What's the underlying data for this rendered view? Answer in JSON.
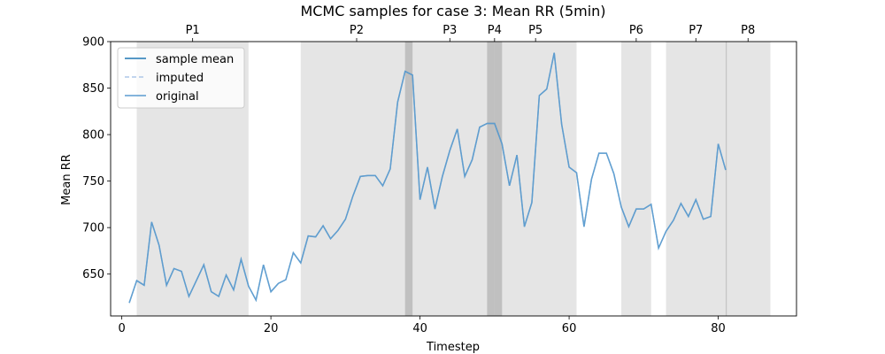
{
  "chart_data": {
    "type": "line",
    "title": "MCMC samples for case 3: Mean RR (5min)",
    "xlabel": "Timestep",
    "ylabel": "Mean RR",
    "xlim": [
      -1.5,
      90.5
    ],
    "ylim": [
      605,
      900
    ],
    "xticks": [
      0,
      20,
      40,
      60,
      80
    ],
    "yticks": [
      650,
      700,
      750,
      800,
      850,
      900
    ],
    "legend_position": "upper-left",
    "colors": {
      "sample_mean": "#1f77b4",
      "imputed": "#aec7e8",
      "original": "#5b9bd0",
      "period_shade": "#d3d3d3",
      "overlap_shade": "#a9a9a9"
    },
    "legend": [
      {
        "label": "sample mean",
        "style": "solid"
      },
      {
        "label": "imputed",
        "style": "dashed"
      },
      {
        "label": "original",
        "style": "solid"
      }
    ],
    "periods": [
      {
        "label": "P1",
        "start": 2,
        "end": 17
      },
      {
        "label": "P2",
        "start": 24,
        "end": 39
      },
      {
        "label": "P3",
        "start": 38,
        "end": 50
      },
      {
        "label": "P4",
        "start": 49,
        "end": 51
      },
      {
        "label": "P5",
        "start": 50,
        "end": 61
      },
      {
        "label": "P6",
        "start": 67,
        "end": 71
      },
      {
        "label": "P7",
        "start": 73,
        "end": 81
      },
      {
        "label": "P8",
        "start": 81,
        "end": 87
      }
    ],
    "overlaps": [
      {
        "start": 38,
        "end": 39
      },
      {
        "start": 49,
        "end": 50
      },
      {
        "start": 50,
        "end": 51
      },
      {
        "start": 81,
        "end": 81.15
      }
    ],
    "series": [
      {
        "name": "original",
        "x": [
          1,
          2,
          3,
          4,
          5,
          6,
          7,
          8,
          9,
          10,
          11,
          12,
          13,
          14,
          15,
          16,
          17,
          18,
          19,
          20,
          21,
          22,
          23,
          24,
          25,
          26,
          27,
          28,
          29,
          30,
          31,
          32,
          33,
          34,
          35,
          36,
          37,
          38,
          39,
          40,
          41,
          42,
          43,
          44,
          45,
          46,
          47,
          48,
          49,
          50,
          51,
          52,
          53,
          54,
          55,
          56,
          57,
          58,
          59,
          60,
          61,
          62,
          63,
          64,
          65,
          66,
          67,
          68,
          69,
          70,
          71,
          72,
          73,
          74,
          75,
          76,
          77,
          78,
          79,
          80,
          81
        ],
        "values": [
          619,
          643,
          638,
          706,
          681,
          638,
          656,
          653,
          626,
          643,
          660,
          631,
          626,
          649,
          633,
          666,
          637,
          622,
          660,
          631,
          640,
          644,
          673,
          662,
          691,
          690,
          702,
          688,
          697,
          709,
          734,
          755,
          756,
          756,
          745,
          763,
          835,
          868,
          864,
          730,
          765,
          720,
          755,
          783,
          806,
          755,
          773,
          808,
          812,
          812,
          790,
          745,
          778,
          701,
          727,
          842,
          849,
          888,
          811,
          765,
          759,
          701,
          752,
          780,
          780,
          758,
          722,
          701,
          720,
          720,
          725,
          678,
          696,
          708,
          726,
          712,
          730,
          709,
          712,
          790,
          762
        ]
      }
    ]
  }
}
